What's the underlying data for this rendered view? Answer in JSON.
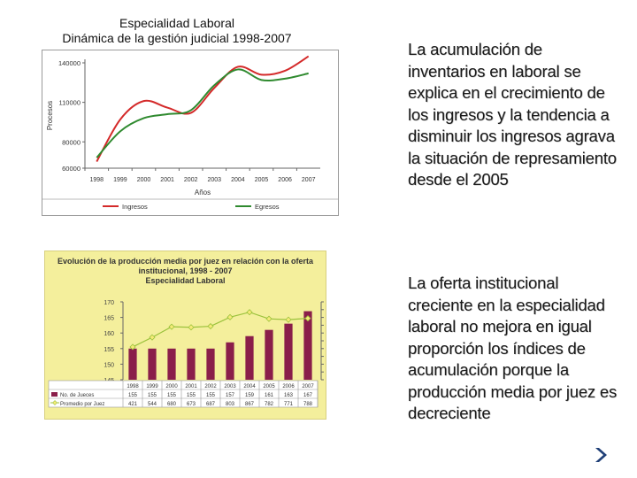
{
  "slide": {
    "paragraph1": "La acumulación de inventarios en laboral se explica en el crecimiento de los ingresos y la tendencia a disminuir los ingresos agrava la situación de represamiento desde el 2005",
    "paragraph2": "La oferta institucional creciente en la especialidad laboral no mejora en igual proporción los índices de acumulación porque la producción media por juez es decreciente",
    "text_color": "#1a1a1a",
    "next_icon": "chevron-right-icon"
  },
  "chart_data": [
    {
      "type": "line",
      "title": "Especialidad Laboral",
      "subtitle": "Dinámica de la gestión judicial 1998-2007",
      "xlabel": "Años",
      "ylabel": "Procesos",
      "x": [
        "1998",
        "1999",
        "2000",
        "2001",
        "2002",
        "2003",
        "2004",
        "2005",
        "2006",
        "2007"
      ],
      "ylim": [
        60000,
        140000
      ],
      "yticks": [
        "140000",
        "110000",
        "80000",
        "60000"
      ],
      "series": [
        {
          "name": "Ingresos",
          "color": "#d42a2a",
          "values": [
            65000,
            97000,
            111000,
            106000,
            102000,
            121000,
            137000,
            131000,
            134000,
            145000
          ]
        },
        {
          "name": "Egresos",
          "color": "#2f8a2f",
          "values": [
            68000,
            88000,
            98000,
            101000,
            104000,
            123000,
            135000,
            127000,
            128000,
            132000
          ]
        }
      ],
      "legend": "bottom",
      "grid": false
    },
    {
      "type": "bar",
      "title": "Evolución de la producción media por juez en relación con la oferta institucional, 1998 - 2007",
      "subtitle": "Especialidad Laboral",
      "categories": [
        "1998",
        "1999",
        "2000",
        "2001",
        "2002",
        "2003",
        "2004",
        "2005",
        "2006",
        "2007"
      ],
      "ylim_left": [
        145,
        170
      ],
      "yticks_left": [
        "170",
        "165",
        "160",
        "155",
        "150",
        "145"
      ],
      "yticks_right": [
        "1000",
        "900",
        "800",
        "700",
        "600",
        "500",
        "400",
        "300",
        "200",
        "100",
        "0"
      ],
      "series": [
        {
          "name": "No. de Jueces",
          "type": "bar",
          "color": "#8a1e4a",
          "values": [
            155,
            155,
            155,
            155,
            155,
            157,
            159,
            161,
            163,
            167
          ],
          "labels": [
            "155",
            "155",
            "155",
            "155",
            "155",
            "157",
            "159",
            "161",
            "163",
            "167"
          ]
        },
        {
          "name": "Promedio por Juez",
          "type": "line",
          "color": "#9bc23c",
          "marker_fill": "#f6eb78",
          "values": [
            421,
            544,
            680,
            673,
            687,
            803,
            867,
            782,
            771,
            788
          ],
          "labels": [
            "421",
            "544",
            "680",
            "673",
            "687",
            "803",
            "867",
            "782",
            "771",
            "788"
          ]
        }
      ],
      "legend": "bottom-table"
    }
  ]
}
